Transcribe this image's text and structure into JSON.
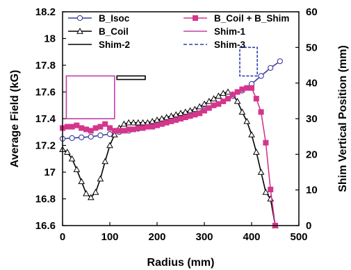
{
  "chart_data": {
    "type": "line",
    "title": "",
    "xlabel": "Radius (mm)",
    "ylabel": "Average Field (kG)",
    "y2label": "Shim Vertical Position (mm)",
    "xlim": [
      0,
      500
    ],
    "ylim": [
      16.6,
      18.2
    ],
    "y2lim": [
      0,
      60
    ],
    "xticks": [
      "0",
      "100",
      "200",
      "300",
      "400",
      "500"
    ],
    "yticks": [
      "16.6",
      "16.8",
      "17",
      "17.2",
      "17.4",
      "17.6",
      "17.8",
      "18",
      "18.2"
    ],
    "y2ticks": [
      "0",
      "10",
      "20",
      "30",
      "40",
      "50",
      "60"
    ],
    "grid": false,
    "legend": "top",
    "series": [
      {
        "name": "B_Isoc",
        "color": "#3b3b9a",
        "marker": "circle",
        "axis": "left",
        "x": [
          0,
          20,
          40,
          60,
          80,
          100,
          120,
          140,
          160,
          180,
          200,
          220,
          240,
          260,
          280,
          300,
          320,
          340,
          360,
          380,
          400,
          420,
          440,
          460
        ],
        "y": [
          17.25,
          17.255,
          17.26,
          17.265,
          17.275,
          17.285,
          17.3,
          17.31,
          17.325,
          17.34,
          17.36,
          17.38,
          17.4,
          17.42,
          17.445,
          17.47,
          17.5,
          17.53,
          17.57,
          17.61,
          17.66,
          17.72,
          17.78,
          17.83
        ]
      },
      {
        "name": "B_Coil",
        "color": "#000000",
        "marker": "triangle",
        "axis": "left",
        "x": [
          0,
          10,
          20,
          30,
          40,
          50,
          60,
          70,
          80,
          90,
          100,
          110,
          120,
          130,
          140,
          150,
          160,
          170,
          180,
          190,
          200,
          210,
          220,
          230,
          240,
          250,
          260,
          270,
          280,
          290,
          300,
          310,
          320,
          330,
          340,
          350,
          360,
          370,
          380,
          390,
          400,
          410,
          420,
          430,
          440,
          450
        ],
        "y": [
          17.17,
          17.15,
          17.1,
          17.02,
          16.93,
          16.84,
          16.81,
          16.85,
          16.95,
          17.08,
          17.2,
          17.28,
          17.33,
          17.36,
          17.37,
          17.37,
          17.37,
          17.37,
          17.37,
          17.38,
          17.39,
          17.4,
          17.41,
          17.42,
          17.43,
          17.44,
          17.45,
          17.46,
          17.47,
          17.49,
          17.51,
          17.53,
          17.55,
          17.57,
          17.59,
          17.6,
          17.58,
          17.53,
          17.45,
          17.38,
          17.28,
          17.15,
          17.0,
          16.85,
          16.8,
          16.6
        ]
      },
      {
        "name": "B_Coil + B_Shim",
        "color": "#d4368c",
        "marker": "square",
        "axis": "left",
        "x": [
          0,
          10,
          20,
          30,
          40,
          50,
          60,
          70,
          80,
          90,
          100,
          110,
          120,
          130,
          140,
          150,
          160,
          170,
          180,
          190,
          200,
          210,
          220,
          230,
          240,
          250,
          260,
          270,
          280,
          290,
          300,
          310,
          320,
          330,
          340,
          350,
          360,
          370,
          380,
          390,
          400,
          410,
          420,
          430,
          440,
          450
        ],
        "y": [
          17.33,
          17.34,
          17.34,
          17.35,
          17.33,
          17.32,
          17.31,
          17.33,
          17.34,
          17.36,
          17.33,
          17.31,
          17.31,
          17.31,
          17.32,
          17.32,
          17.33,
          17.33,
          17.34,
          17.34,
          17.35,
          17.36,
          17.37,
          17.38,
          17.39,
          17.4,
          17.41,
          17.42,
          17.43,
          17.44,
          17.46,
          17.48,
          17.5,
          17.51,
          17.53,
          17.55,
          17.58,
          17.6,
          17.62,
          17.63,
          17.63,
          17.55,
          17.45,
          17.22,
          16.87,
          16.6
        ]
      }
    ],
    "shims": [
      {
        "name": "Shim-1",
        "color": "#c040a8",
        "style": "solid",
        "axis": "right",
        "x_range": [
          8,
          110
        ],
        "y_range": [
          30,
          42
        ]
      },
      {
        "name": "Shim-2",
        "color": "#000000",
        "style": "solid",
        "axis": "right",
        "x_range": [
          115,
          175
        ],
        "y_range": [
          41,
          42
        ]
      },
      {
        "name": "Shim-3",
        "color": "#2b3fb4",
        "style": "dashed",
        "axis": "right",
        "x_range": [
          375,
          412
        ],
        "y_range": [
          42,
          50
        ]
      }
    ]
  }
}
